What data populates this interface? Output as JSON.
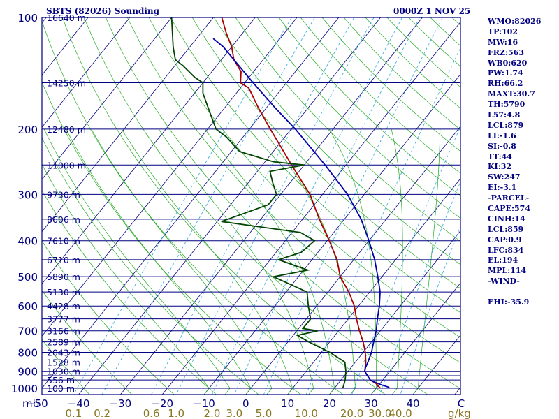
{
  "header": {
    "station": "SBTS (82026) Sounding",
    "time": "0000Z  1 NOV 25"
  },
  "stats": [
    "WMO:82026",
    "TP:102",
    "MW:16",
    "FRZ:563",
    "WB0:620",
    "PW:1.74",
    "RH:66.2",
    "MAXT:30.7",
    "TH:5790",
    "L57:4.8",
    "LCL:879",
    "LI:-1.6",
    "SI:-0.8",
    "TT:44",
    "KI:32",
    "SW:247",
    "EI:-3.1",
    "-PARCEL-",
    "CAPE:574",
    "CINH:14",
    "LCL:859",
    "CAP:0.9",
    "LFC:834",
    "EL:194",
    "MPL:114",
    "-WIND-",
    "",
    "EHI:-35.9"
  ],
  "colors": {
    "frame": "#000080",
    "isobar": "#000080",
    "isotherm": "#000080",
    "dry_adiabat": "#22aa22",
    "moist_adiabat": "#22aa22",
    "mixing_ratio": "#33aadd",
    "temperature": "#aa0000",
    "dewpoint": "#004400",
    "parcel": "#0000aa",
    "pressure_labels": "#000080",
    "height_labels": "#000080",
    "temp_labels": "#000080",
    "mixing_labels": "#887722"
  },
  "chart_data": {
    "type": "line",
    "title": "SBTS (82026) Sounding",
    "subtitle": "0000Z  1 NOV 25",
    "y_scale": "log",
    "ylabel": "mb",
    "ylim": [
      1050,
      100
    ],
    "pressure_ticks": [
      100,
      200,
      300,
      400,
      500,
      600,
      700,
      800,
      900,
      1000
    ],
    "isobar_levels": [
      100,
      150,
      200,
      250,
      300,
      350,
      400,
      450,
      500,
      550,
      600,
      650,
      700,
      750,
      800,
      850,
      900,
      925,
      950,
      1000
    ],
    "height_labels": [
      {
        "p": 100,
        "label": "16640 m"
      },
      {
        "p": 150,
        "label": "14250 m"
      },
      {
        "p": 200,
        "label": "12480 m"
      },
      {
        "p": 250,
        "label": "11000 m"
      },
      {
        "p": 300,
        "label": "9730 m"
      },
      {
        "p": 350,
        "label": "8606 m"
      },
      {
        "p": 400,
        "label": "7610 m"
      },
      {
        "p": 450,
        "label": "6710 m"
      },
      {
        "p": 500,
        "label": "5890 m"
      },
      {
        "p": 550,
        "label": "5130 m"
      },
      {
        "p": 600,
        "label": "4428 m"
      },
      {
        "p": 650,
        "label": "3777 m"
      },
      {
        "p": 700,
        "label": "3166 m"
      },
      {
        "p": 750,
        "label": "2589 m"
      },
      {
        "p": 800,
        "label": "2043 m"
      },
      {
        "p": 850,
        "label": "1528 m"
      },
      {
        "p": 900,
        "label": "1030 m"
      },
      {
        "p": 950,
        "label": "556 m"
      },
      {
        "p": 1000,
        "label": "100 m"
      }
    ],
    "temp_ticks": [
      -50,
      -40,
      -30,
      -20,
      -10,
      0,
      10,
      20,
      30,
      40
    ],
    "temp_tick_labels": [
      "−50",
      "−40",
      "−30",
      "−20",
      "−10",
      "0",
      "10",
      "20",
      "30",
      "40"
    ],
    "temp_unit_label": "C",
    "mixing_ratio_ticks": [
      0.1,
      0.2,
      0.6,
      1.0,
      2.0,
      3.0,
      5.0,
      10.0,
      20.0,
      30.0,
      40.0
    ],
    "mixing_ratio_labels": [
      "0.1",
      "0.2",
      "0.6",
      "1.0",
      "2.0",
      "3.0",
      "5.0",
      "10.0",
      "20.0",
      "30.0",
      "40.0"
    ],
    "mixing_ratio_unit": "g/kg",
    "series": [
      {
        "key": "temperature",
        "points": [
          [
            1000,
            31
          ],
          [
            970,
            29
          ],
          [
            950,
            27
          ],
          [
            925,
            25.5
          ],
          [
            900,
            24
          ],
          [
            850,
            22.5
          ],
          [
            800,
            20.5
          ],
          [
            750,
            18
          ],
          [
            700,
            15
          ],
          [
            650,
            12
          ],
          [
            600,
            9
          ],
          [
            550,
            5
          ],
          [
            500,
            0
          ],
          [
            450,
            -4
          ],
          [
            400,
            -9.5
          ],
          [
            350,
            -16
          ],
          [
            300,
            -23
          ],
          [
            250,
            -33
          ],
          [
            200,
            -45
          ],
          [
            175,
            -52
          ],
          [
            155,
            -58
          ],
          [
            150,
            -61
          ],
          [
            140,
            -63
          ],
          [
            130,
            -67
          ],
          [
            120,
            -70
          ],
          [
            110,
            -74
          ],
          [
            100,
            -78
          ]
        ]
      },
      {
        "key": "dewpoint",
        "points": [
          [
            1000,
            22
          ],
          [
            950,
            21
          ],
          [
            900,
            19.5
          ],
          [
            850,
            17.5
          ],
          [
            800,
            12
          ],
          [
            750,
            5
          ],
          [
            720,
            1
          ],
          [
            700,
            5
          ],
          [
            690,
            1
          ],
          [
            650,
            1
          ],
          [
            600,
            -2
          ],
          [
            550,
            -5
          ],
          [
            500,
            -16
          ],
          [
            480,
            -9
          ],
          [
            470,
            -12
          ],
          [
            450,
            -18
          ],
          [
            430,
            -14
          ],
          [
            400,
            -13
          ],
          [
            380,
            -18
          ],
          [
            355,
            -39
          ],
          [
            320,
            -31
          ],
          [
            300,
            -31
          ],
          [
            280,
            -34
          ],
          [
            260,
            -37
          ],
          [
            250,
            -30
          ],
          [
            245,
            -38
          ],
          [
            230,
            -48
          ],
          [
            210,
            -54
          ],
          [
            200,
            -58
          ],
          [
            175,
            -64
          ],
          [
            160,
            -68
          ],
          [
            150,
            -70
          ],
          [
            145,
            -73
          ],
          [
            135,
            -78
          ],
          [
            130,
            -81
          ],
          [
            120,
            -84
          ],
          [
            100,
            -90
          ]
        ]
      },
      {
        "key": "parcel",
        "points": [
          [
            995,
            33
          ],
          [
            975,
            30
          ],
          [
            950,
            27
          ],
          [
            925,
            25.5
          ],
          [
            900,
            24
          ],
          [
            880,
            23.5
          ],
          [
            850,
            23
          ],
          [
            800,
            22
          ],
          [
            750,
            20.5
          ],
          [
            700,
            19
          ],
          [
            650,
            17
          ],
          [
            600,
            15
          ],
          [
            550,
            12.5
          ],
          [
            500,
            9
          ],
          [
            450,
            5
          ],
          [
            400,
            0
          ],
          [
            350,
            -6
          ],
          [
            300,
            -14
          ],
          [
            250,
            -25
          ],
          [
            200,
            -39
          ],
          [
            175,
            -48
          ],
          [
            150,
            -58
          ],
          [
            130,
            -67
          ],
          [
            120,
            -72
          ],
          [
            114,
            -76
          ]
        ]
      }
    ]
  }
}
